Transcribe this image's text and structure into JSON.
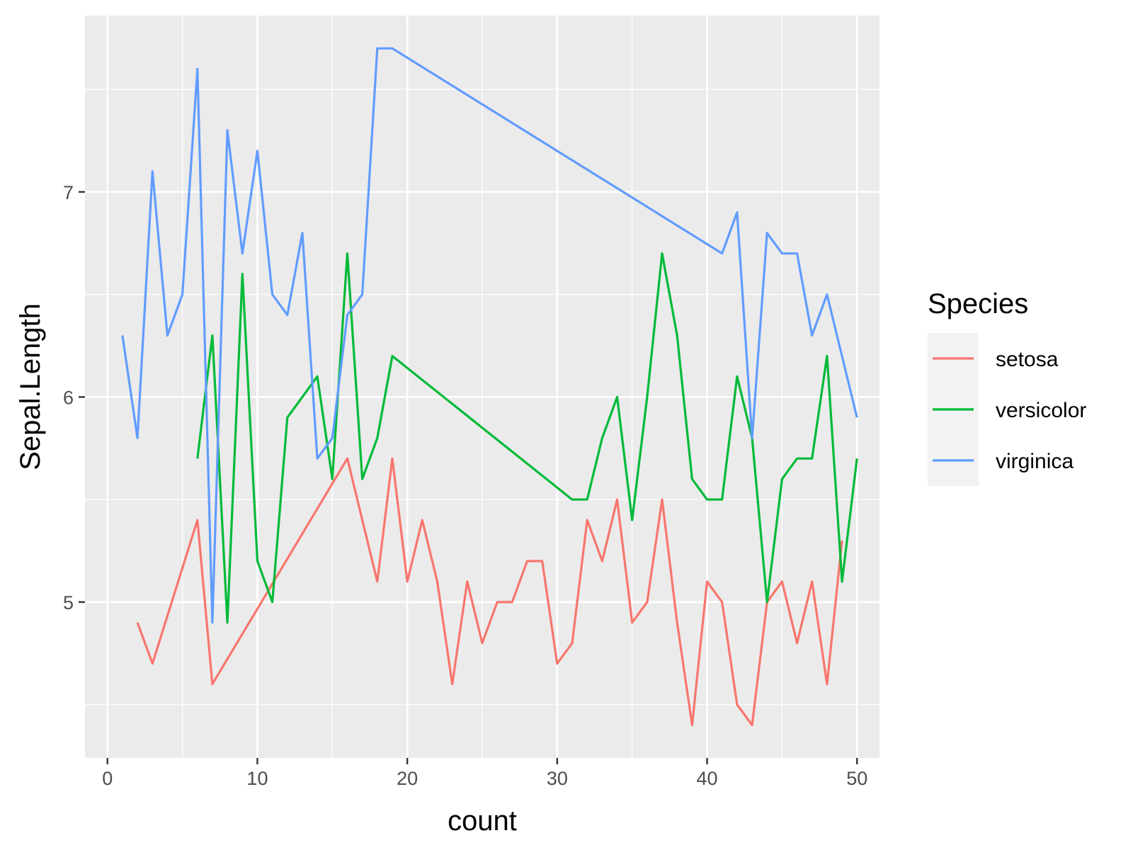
{
  "chart_data": {
    "type": "line",
    "xlabel": "count",
    "ylabel": "Sepal.Length",
    "xlim": [
      -1.5,
      51.5
    ],
    "ylim": [
      4.24,
      7.86
    ],
    "x_ticks": [
      0,
      10,
      20,
      30,
      40,
      50
    ],
    "y_ticks": [
      5,
      6,
      7
    ],
    "grid": true,
    "legend": {
      "title": "Species",
      "position": "right"
    },
    "series": [
      {
        "name": "setosa",
        "color": "#F8766D",
        "x": [
          2,
          3,
          6,
          7,
          16,
          18,
          19,
          20,
          21,
          22,
          23,
          24,
          25,
          26,
          27,
          28,
          29,
          30,
          31,
          32,
          33,
          34,
          35,
          36,
          37,
          38,
          39,
          40,
          41,
          42,
          43,
          44,
          45,
          46,
          47,
          48,
          49
        ],
        "y": [
          4.9,
          4.7,
          5.4,
          4.6,
          5.7,
          5.1,
          5.7,
          5.1,
          5.4,
          5.1,
          4.6,
          5.1,
          4.8,
          5.0,
          5.0,
          5.2,
          5.2,
          4.7,
          4.8,
          5.4,
          5.2,
          5.5,
          4.9,
          5.0,
          5.5,
          4.9,
          4.4,
          5.1,
          5.0,
          4.5,
          4.4,
          5.0,
          5.1,
          4.8,
          5.1,
          4.6,
          5.3
        ]
      },
      {
        "name": "versicolor",
        "color": "#00BA38",
        "x": [
          6,
          7,
          8,
          9,
          10,
          11,
          12,
          14,
          15,
          16,
          17,
          18,
          19,
          31,
          32,
          33,
          34,
          35,
          36,
          37,
          38,
          39,
          40,
          41,
          42,
          43,
          44,
          45,
          46,
          47,
          48,
          49,
          50
        ],
        "y": [
          5.7,
          6.3,
          4.9,
          6.6,
          5.2,
          5.0,
          5.9,
          6.1,
          5.6,
          6.7,
          5.6,
          5.8,
          6.2,
          5.5,
          5.5,
          5.8,
          6.0,
          5.4,
          6.0,
          6.7,
          6.3,
          5.6,
          5.5,
          5.5,
          6.1,
          5.8,
          5.0,
          5.6,
          5.7,
          5.7,
          6.2,
          5.1,
          5.7
        ]
      },
      {
        "name": "virginica",
        "color": "#619CFF",
        "x": [
          1,
          2,
          3,
          4,
          5,
          6,
          7,
          8,
          9,
          10,
          11,
          12,
          13,
          14,
          15,
          16,
          17,
          18,
          19,
          41,
          42,
          43,
          44,
          45,
          46,
          47,
          48,
          50
        ],
        "y": [
          6.3,
          5.8,
          7.1,
          6.3,
          6.5,
          7.6,
          4.9,
          7.3,
          6.7,
          7.2,
          6.5,
          6.4,
          6.8,
          5.7,
          5.8,
          6.4,
          6.5,
          7.7,
          7.7,
          6.7,
          6.9,
          5.8,
          6.8,
          6.7,
          6.7,
          6.3,
          6.5,
          5.9
        ]
      }
    ]
  }
}
